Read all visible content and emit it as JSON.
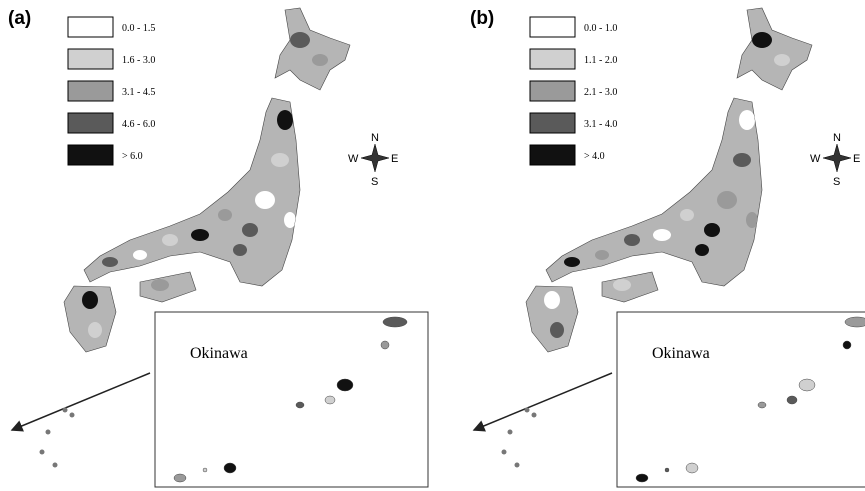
{
  "panels": [
    {
      "label": "(a)",
      "legend": [
        {
          "label": "0.0 - 1.5",
          "color": "#ffffff"
        },
        {
          "label": "1.6 - 3.0",
          "color": "#d0d0d0"
        },
        {
          "label": "3.1 - 4.5",
          "color": "#9a9a9a"
        },
        {
          "label": "4.6 - 6.0",
          "color": "#5a5a5a"
        },
        {
          "label": "> 6.0",
          "color": "#111111"
        }
      ],
      "compass": {
        "n": "N",
        "e": "E",
        "s": "S",
        "w": "W"
      },
      "inset_label": "Okinawa"
    },
    {
      "label": "(b)",
      "legend": [
        {
          "label": "0.0 - 1.0",
          "color": "#ffffff"
        },
        {
          "label": "1.1 - 2.0",
          "color": "#d0d0d0"
        },
        {
          "label": "2.1 - 3.0",
          "color": "#9a9a9a"
        },
        {
          "label": "3.1 - 4.0",
          "color": "#5a5a5a"
        },
        {
          "label": "> 4.0",
          "color": "#111111"
        }
      ],
      "compass": {
        "n": "N",
        "e": "E",
        "s": "S",
        "w": "W"
      },
      "inset_label": "Okinawa"
    }
  ]
}
